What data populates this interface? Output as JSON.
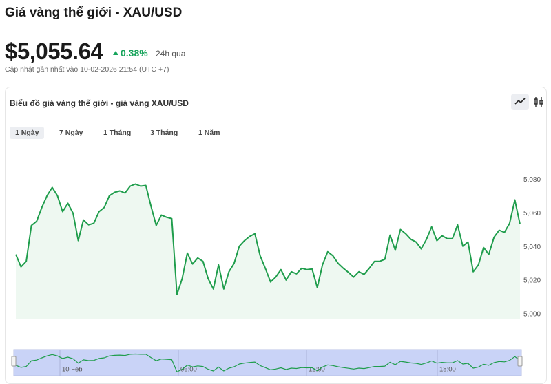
{
  "header": {
    "title": "Giá vàng thế giới - XAU/USD",
    "price": "$5,055.64",
    "change": "0.38%",
    "period": "24h qua",
    "updated": "Cập nhật gần nhất vào 10-02-2026 21:54 (UTC +7)"
  },
  "chart_data": {
    "type": "line",
    "title": "Biểu đồ giá vàng thế giới - giá vàng XAU/USD",
    "ranges": [
      "1 Ngày",
      "7 Ngày",
      "1 Tháng",
      "3 Tháng",
      "1 Năm"
    ],
    "values": [
      5035.7,
      5028.3,
      5031.6,
      5052.9,
      5055.4,
      5063.6,
      5070.6,
      5075.5,
      5070.6,
      5061.1,
      5066.1,
      5060.3,
      5043.9,
      5056.2,
      5053.3,
      5054.2,
      5061.1,
      5063.6,
      5070.6,
      5072.6,
      5073.4,
      5072.2,
      5076.3,
      5077.5,
      5076.3,
      5076.7,
      5064.4,
      5052.9,
      5059.1,
      5057.8,
      5057.0,
      5011.9,
      5021.3,
      5036.5,
      5030.0,
      5033.6,
      5031.6,
      5021.3,
      5015.2,
      5029.5,
      5015.2,
      5025.4,
      5030.4,
      5040.6,
      5043.9,
      5046.4,
      5048.0,
      5034.9,
      5027.5,
      5019.3,
      5022.2,
      5026.7,
      5020.5,
      5025.4,
      5024.2,
      5027.5,
      5026.7,
      5027.1,
      5016.0,
      5029.5,
      5037.3,
      5034.9,
      5030.4,
      5027.5,
      5025.0,
      5022.2,
      5025.4,
      5023.8,
      5027.5,
      5031.6,
      5031.6,
      5032.8,
      5047.2,
      5038.2,
      5050.5,
      5048.0,
      5044.7,
      5043.1,
      5039.0,
      5044.7,
      5052.1,
      5043.9,
      5046.8,
      5045.1,
      5045.1,
      5053.3,
      5040.6,
      5043.1,
      5025.4,
      5029.5,
      5039.8,
      5035.7,
      5045.9,
      5050.1,
      5048.8,
      5054.2,
      5068.1,
      5053.7
    ],
    "color": "#1f9d4c",
    "ylim": [
      4997.5,
      5099
    ],
    "yticks": [
      {
        "value": 5000,
        "label": "5,000"
      },
      {
        "value": 5020,
        "label": "5,020"
      },
      {
        "value": 5040,
        "label": "5,040"
      },
      {
        "value": 5060,
        "label": "5,060"
      },
      {
        "value": 5080,
        "label": "5,080"
      }
    ],
    "navigator_labels": [
      "10 Feb",
      "06:00",
      "12:00",
      "18:00"
    ]
  }
}
